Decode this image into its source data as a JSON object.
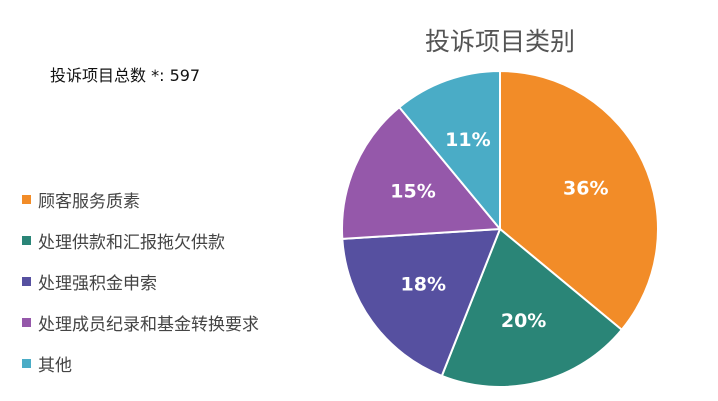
{
  "total_label": "投诉项目总数 *: 597",
  "chart_data": {
    "type": "pie",
    "title": "投诉项目类别",
    "legend_position": "left",
    "slices": [
      {
        "label": "顾客服务质素",
        "value": 36,
        "display": "36%",
        "color": "#F28C28"
      },
      {
        "label": "处理供款和汇报拖欠供款",
        "value": 20,
        "display": "20%",
        "color": "#2A8577"
      },
      {
        "label": "处理强积金申索",
        "value": 18,
        "display": "18%",
        "color": "#5650A0"
      },
      {
        "label": "处理成员纪录和基金转换要求",
        "value": 15,
        "display": "15%",
        "color": "#9558AA"
      },
      {
        "label": "其他",
        "value": 11,
        "display": "11%",
        "color": "#4AACC6"
      }
    ]
  }
}
